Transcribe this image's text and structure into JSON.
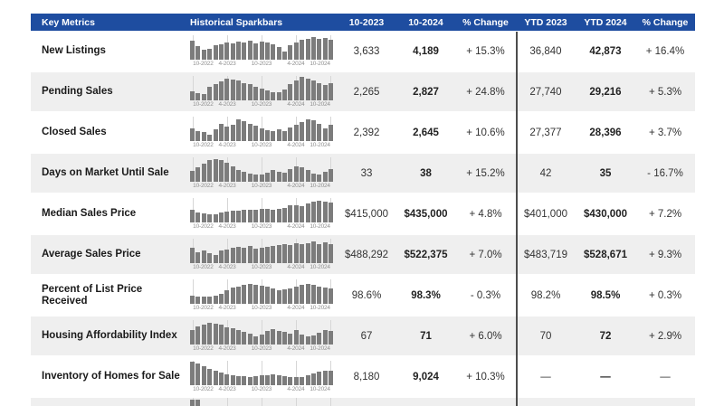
{
  "colors": {
    "header_bg": "#1e4da0",
    "header_text": "#ffffff",
    "row_alt_bg": "#efefef",
    "bar": "#7c7c7c",
    "gridline": "#d6d6d6",
    "divider": "#4d4d4d",
    "metric_text": "#1a1a1a",
    "value_text": "#333333",
    "axis_text": "#8f8f8f"
  },
  "chart_data": {
    "type": "table",
    "title": "Key Metrics",
    "columns": [
      "Key Metrics",
      "Historical Sparkbars",
      "10-2023",
      "10-2024",
      "% Change",
      "YTD 2023",
      "YTD 2024",
      "% Change"
    ],
    "spark_x_labels": [
      "10-2022",
      "4-2023",
      "10-2023",
      "4-2024",
      "10-2024"
    ],
    "spark_note": "Each sparkbar = 25 monthly bars, Oct 2022 through Oct 2024; heights are % of row max",
    "rows": [
      {
        "metric": "New Listings",
        "values": [
          "3,633",
          "4,189",
          "+ 15.3%",
          "36,840",
          "42,873",
          "+ 16.4%"
        ],
        "spark": [
          78,
          55,
          42,
          45,
          60,
          63,
          72,
          65,
          75,
          70,
          77,
          68,
          74,
          70,
          63,
          52,
          35,
          60,
          72,
          80,
          85,
          92,
          85,
          90,
          82
        ]
      },
      {
        "metric": "Pending Sales",
        "values": [
          "2,265",
          "2,827",
          "+ 24.8%",
          "27,740",
          "29,216",
          "+ 5.3%"
        ],
        "spark": [
          38,
          30,
          27,
          55,
          65,
          78,
          88,
          85,
          80,
          72,
          65,
          55,
          48,
          42,
          35,
          32,
          45,
          68,
          80,
          95,
          88,
          82,
          72,
          62,
          70
        ]
      },
      {
        "metric": "Closed Sales",
        "values": [
          "2,392",
          "2,645",
          "+ 10.6%",
          "27,377",
          "28,396",
          "+ 3.7%"
        ],
        "spark": [
          52,
          42,
          38,
          25,
          48,
          72,
          60,
          68,
          88,
          80,
          72,
          62,
          52,
          45,
          40,
          48,
          42,
          55,
          68,
          78,
          90,
          85,
          72,
          52,
          65
        ]
      },
      {
        "metric": "Days on Market Until Sale",
        "values": [
          "33",
          "38",
          "+ 15.2%",
          "42",
          "35",
          "- 16.7%"
        ],
        "spark": [
          45,
          58,
          75,
          88,
          92,
          88,
          78,
          62,
          48,
          40,
          35,
          30,
          30,
          38,
          48,
          42,
          38,
          52,
          62,
          60,
          48,
          35,
          30,
          42,
          52
        ]
      },
      {
        "metric": "Median Sales Price",
        "values": [
          "$415,000",
          "$435,000",
          "+ 4.8%",
          "$401,000",
          "$430,000",
          "+ 7.2%"
        ],
        "spark": [
          50,
          42,
          38,
          35,
          33,
          40,
          44,
          47,
          48,
          50,
          52,
          50,
          54,
          56,
          52,
          57,
          60,
          70,
          72,
          65,
          76,
          85,
          88,
          87,
          80
        ]
      },
      {
        "metric": "Average Sales Price",
        "values": [
          "$488,292",
          "$522,375",
          "+ 7.0%",
          "$483,719",
          "$528,671",
          "+ 9.3%"
        ],
        "spark": [
          62,
          45,
          52,
          40,
          35,
          50,
          55,
          62,
          66,
          62,
          70,
          58,
          64,
          66,
          72,
          74,
          77,
          73,
          80,
          76,
          83,
          88,
          78,
          84,
          76
        ]
      },
      {
        "metric": "Percent of List Price Received",
        "values": [
          "98.6%",
          "98.3%",
          "- 0.3%",
          "98.2%",
          "98.5%",
          "+ 0.3%"
        ],
        "spark": [
          35,
          30,
          28,
          30,
          33,
          40,
          55,
          65,
          72,
          78,
          80,
          78,
          75,
          70,
          64,
          55,
          58,
          62,
          70,
          78,
          82,
          78,
          72,
          68,
          64
        ]
      },
      {
        "metric": "Housing Affordability Index",
        "values": [
          "67",
          "71",
          "+ 6.0%",
          "70",
          "72",
          "+ 2.9%"
        ],
        "spark": [
          60,
          75,
          82,
          90,
          84,
          80,
          72,
          66,
          60,
          52,
          45,
          35,
          40,
          55,
          62,
          55,
          50,
          45,
          58,
          40,
          34,
          38,
          48,
          58,
          55
        ]
      },
      {
        "metric": "Inventory of Homes for Sale",
        "values": [
          "8,180",
          "9,024",
          "+ 10.3%",
          "—",
          "—",
          "—"
        ],
        "spark": [
          95,
          88,
          76,
          68,
          60,
          52,
          46,
          40,
          38,
          36,
          35,
          36,
          40,
          42,
          45,
          40,
          36,
          34,
          32,
          35,
          40,
          48,
          55,
          60,
          58
        ]
      }
    ],
    "partial_row_spark_fragment": [
      65,
      50
    ]
  }
}
